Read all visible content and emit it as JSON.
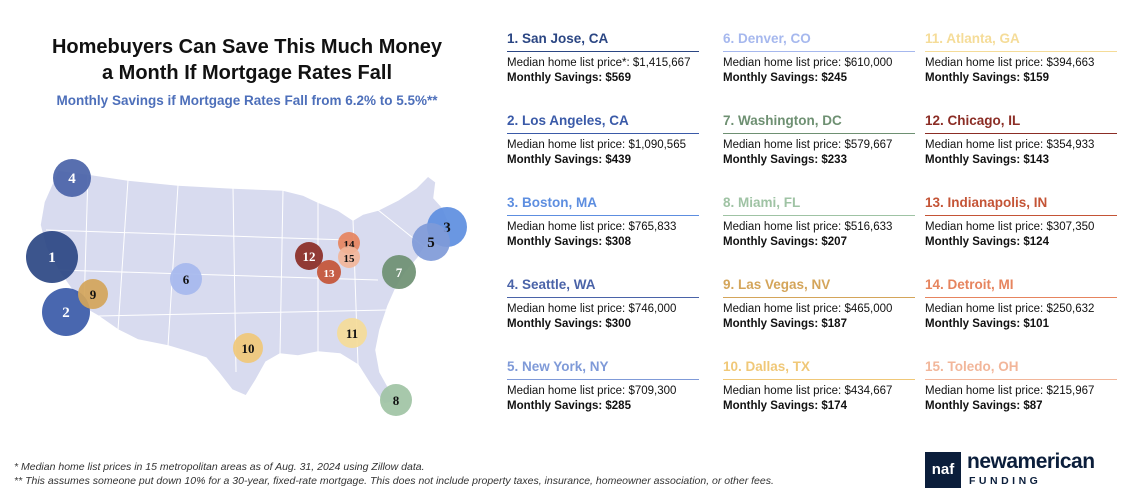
{
  "title_line1": "Homebuyers Can Save This Much Money",
  "title_line2": "a Month If Mortgage Rates Fall",
  "subtitle": "Monthly Savings if Mortgage Rates Fall from 6.2% to 5.5%**",
  "cities": [
    {
      "name": "1. San Jose, CA",
      "price": "Median home list price*: $1,415,667",
      "savings": "Monthly Savings: $569",
      "color": "#2b4683"
    },
    {
      "name": "2. Los Angeles, CA",
      "price": "Median home list price: $1,090,565",
      "savings": "Monthly Savings: $439",
      "color": "#3a5aa8"
    },
    {
      "name": "3. Boston, MA",
      "price": "Median home list price: $765,833",
      "savings": "Monthly Savings: $308",
      "color": "#5d8ee0"
    },
    {
      "name": "4. Seattle, WA",
      "price": "Median home list price: $746,000",
      "savings": "Monthly Savings: $300",
      "color": "#4a63a8"
    },
    {
      "name": "5. New York, NY",
      "price": "Median home list price: $709,300",
      "savings": "Monthly Savings: $285",
      "color": "#7f9ad8"
    },
    {
      "name": "6. Denver, CO",
      "price": "Median home list price: $610,000",
      "savings": "Monthly Savings: $245",
      "color": "#a6b8ee"
    },
    {
      "name": "7. Washington, DC",
      "price": "Median home list price: $579,667",
      "savings": "Monthly Savings: $233",
      "color": "#6e9072"
    },
    {
      "name": "8. Miami, FL",
      "price": "Median home list price: $516,633",
      "savings": "Monthly Savings: $207",
      "color": "#9fc3a4"
    },
    {
      "name": "9. Las Vegas, NV",
      "price": "Median home list price: $465,000",
      "savings": "Monthly Savings: $187",
      "color": "#d4a55a"
    },
    {
      "name": "10. Dallas, TX",
      "price": "Median home list price: $434,667",
      "savings": "Monthly Savings: $174",
      "color": "#f0c878"
    },
    {
      "name": "11. Atlanta, GA",
      "price": "Median home list price: $394,663",
      "savings": "Monthly Savings: $159",
      "color": "#f5dc98"
    },
    {
      "name": "12. Chicago, IL",
      "price": "Median home list price: $354,933",
      "savings": "Monthly Savings: $143",
      "color": "#8b2d25"
    },
    {
      "name": "13. Indianapolis, IN",
      "price": "Median home list price: $307,350",
      "savings": "Monthly Savings: $124",
      "color": "#c45436"
    },
    {
      "name": "14. Detroit, MI",
      "price": "Median home list price: $250,632",
      "savings": "Monthly Savings: $101",
      "color": "#e6845e"
    },
    {
      "name": "15. Toledo, OH",
      "price": "Median home list price: $215,967",
      "savings": "Monthly Savings: $87",
      "color": "#f2b69a"
    }
  ],
  "map_markers": [
    {
      "label": "1",
      "fill": "#2b4683",
      "text_color": "#ffffff"
    },
    {
      "label": "2",
      "fill": "#3a5aa8",
      "text_color": "#ffffff"
    },
    {
      "label": "3",
      "fill": "#5d8ee0",
      "text_color": "#111111"
    },
    {
      "label": "4",
      "fill": "#4a63a8",
      "text_color": "#ffffff"
    },
    {
      "label": "5",
      "fill": "#7f9ad8",
      "text_color": "#111111"
    },
    {
      "label": "6",
      "fill": "#a6b8ee",
      "text_color": "#111111"
    },
    {
      "label": "7",
      "fill": "#6e9072",
      "text_color": "#ffffff"
    },
    {
      "label": "8",
      "fill": "#9fc3a4",
      "text_color": "#111111"
    },
    {
      "label": "9",
      "fill": "#d4a55a",
      "text_color": "#111111"
    },
    {
      "label": "10",
      "fill": "#f0c878",
      "text_color": "#111111"
    },
    {
      "label": "11",
      "fill": "#f5dc98",
      "text_color": "#111111"
    },
    {
      "label": "12",
      "fill": "#8b2d25",
      "text_color": "#ffffff"
    },
    {
      "label": "13",
      "fill": "#c45436",
      "text_color": "#ffffff"
    },
    {
      "label": "14",
      "fill": "#e6845e",
      "text_color": "#111111"
    },
    {
      "label": "15",
      "fill": "#f2b69a",
      "text_color": "#111111"
    }
  ],
  "footnote1": "* Median home list prices in 15 metropolitan areas as of Aug. 31, 2024 using Zillow data.",
  "footnote2": "** This assumes someone put down 10% for a 30-year, fixed-rate mortgage. This does not include property taxes, insurance, homeowner association, or other fees.",
  "logo": {
    "mark": "naf",
    "name": "newamerican",
    "sub": "FUNDING"
  }
}
